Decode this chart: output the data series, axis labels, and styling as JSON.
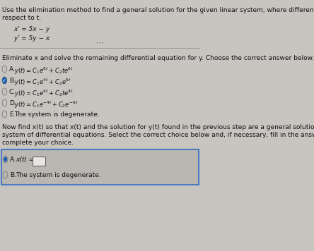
{
  "bg_color": "#c8c4c0",
  "bg_top": "#c8c4c0",
  "bg_bottom": "#c0bcb8",
  "text_color": "#111111",
  "title_line1": "Use the elimination method to find a general solution for the given linear system, where differentiation is with",
  "title_line2": "respect to t.",
  "eq1": "x’ = 5x − y",
  "eq2": "y’ = 5y − x",
  "instruct1": "Eliminate x and solve the remaining differential equation for y. Choose the correct answer below.",
  "instruct2_line1": "Now find x(t) so that x(t) and the solution for y(t) found in the previous step are a general solution to the",
  "instruct2_line2": "system of differential equations. Select the correct choice below and, if necessary, fill in the answer box to",
  "instruct2_line3": "complete your choice.",
  "choiceA_text": "x(t) =",
  "choiceB_text": "The system is degenerate.",
  "radio_fill": "#1a5faa",
  "box_border": "#4a7abf",
  "box_bg": "#bab6b2"
}
